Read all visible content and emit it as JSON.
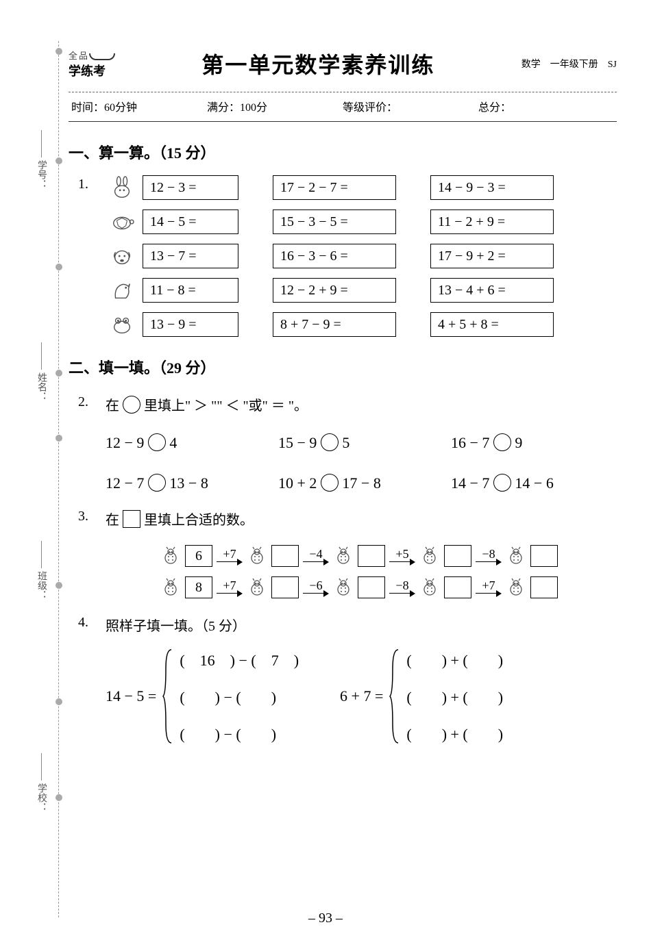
{
  "header": {
    "logo_top": "全品",
    "logo_bottom": "学练考",
    "title": "第一单元数学素养训练",
    "subject": "数学　一年级下册　SJ",
    "time_label": "时间：",
    "time_value": "60分钟",
    "full_label": "满分：",
    "full_value": "100分",
    "grade_label": "等级评价：",
    "total_label": "总分："
  },
  "side_labels": {
    "xuehao": "学号：",
    "xingming": "姓名：",
    "banji": "班级：",
    "xuexiao": "学校："
  },
  "section1": {
    "title": "一、算一算。（15 分）",
    "q1_num": "1.",
    "col1": [
      "12 − 3 =",
      "14 − 5 =",
      "13 − 7 =",
      "11 − 8 =",
      "13 − 9 ="
    ],
    "col2": [
      "17 − 2 − 7 =",
      "15 − 3 − 5 =",
      "16 − 3 − 6 =",
      "12 − 2 + 9 =",
      "8 + 7 − 9 ="
    ],
    "col3": [
      "14 − 9 − 3 =",
      "11 − 2 + 9 =",
      "17 − 9 + 2 =",
      "13 − 4 + 6 =",
      "4 + 5 + 8 ="
    ]
  },
  "section2": {
    "title": "二、填一填。（29 分）",
    "q2_num": "2.",
    "q2_text_a": "在 ",
    "q2_text_b": " 里填上\" ＞ \"\" ＜ \"或\" ＝ \"。",
    "cmp": [
      "12 − 9 ○ 4",
      "15 − 9 ○ 5",
      "16 − 7 ○ 9",
      "12 − 7 ○ 13 − 8",
      "10 + 2 ○ 17 − 8",
      "14 − 7 ○ 14 − 6"
    ],
    "q3_num": "3.",
    "q3_text_a": "在 ",
    "q3_text_b": " 里填上合适的数。",
    "chain1": {
      "start": "6",
      "ops": [
        "+7",
        "−4",
        "+5",
        "−8"
      ]
    },
    "chain2": {
      "start": "8",
      "ops": [
        "+7",
        "−6",
        "−8",
        "+7"
      ]
    },
    "q4_num": "4.",
    "q4_text": "照样子填一填。（5 分）",
    "q4_left_lhs": "14 − 5 =",
    "q4_left_cases": [
      "(　16　) − (　7　)",
      "(　　) − (　　)",
      "(　　) − (　　)"
    ],
    "q4_right_lhs": "6 + 7 =",
    "q4_right_cases": [
      "(　　) + (　　)",
      "(　　) + (　　)",
      "(　　) + (　　)"
    ]
  },
  "page_number": "– 93 –",
  "colors": {
    "text": "#000000",
    "bg": "#ffffff",
    "dashed": "#999999"
  }
}
